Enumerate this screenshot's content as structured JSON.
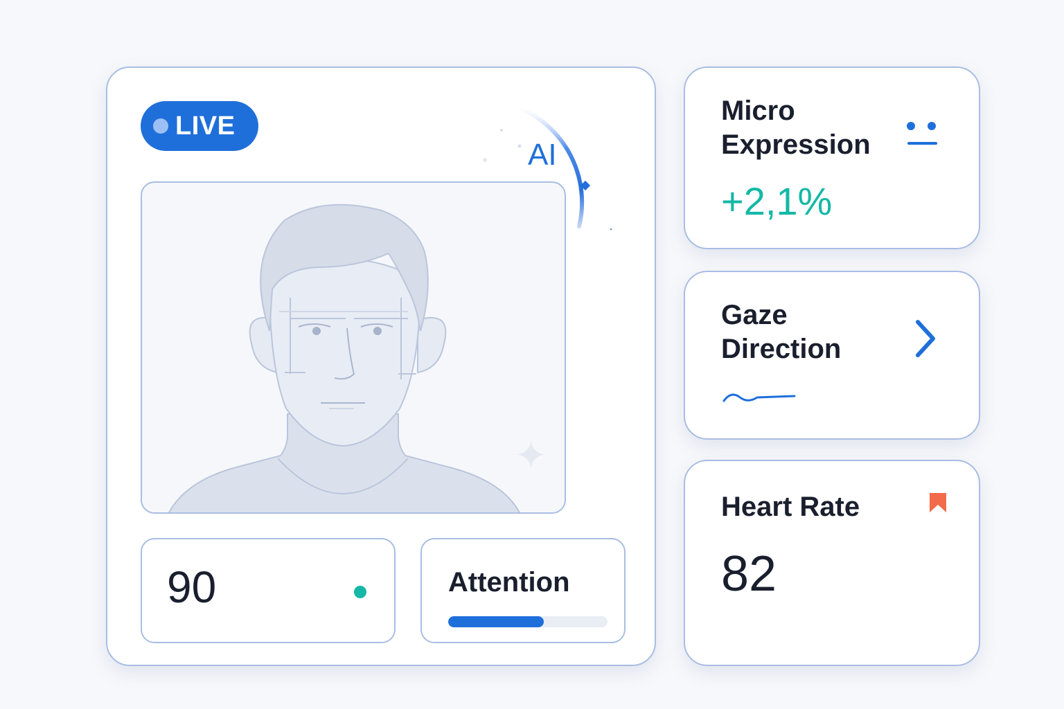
{
  "main_panel": {
    "live_badge": "LIVE",
    "ai_label": "AI",
    "score": {
      "value": "90"
    },
    "attention": {
      "label": "Attention",
      "progress": 0.6
    }
  },
  "micro_expression": {
    "title_line1": "Micro",
    "title_line2": "Expression",
    "delta": "+2,1%",
    "icon": "neutral-face-icon"
  },
  "gaze_direction": {
    "title_line1": "Gaze",
    "title_line2": "Direction",
    "icon": "chevron-right-icon",
    "trace_icon": "wave-trace-icon"
  },
  "heart_rate": {
    "title": "Heart Rate",
    "value": "82",
    "icon": "bookmark-icon"
  },
  "colors": {
    "accent": "#1f6fdb",
    "positive": "#14b8a6",
    "alert": "#f26b4a",
    "border": "#a9bde3"
  }
}
